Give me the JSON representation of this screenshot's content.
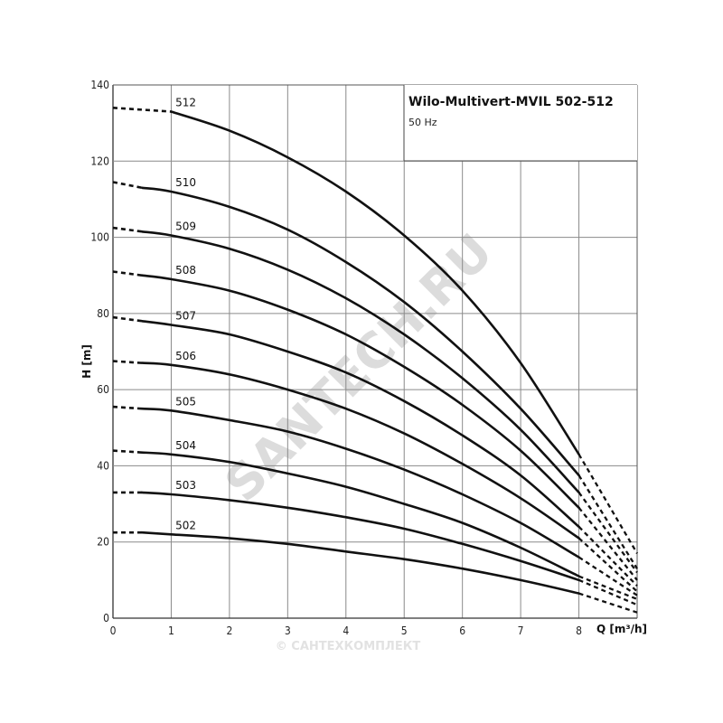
{
  "chart_data": {
    "type": "line",
    "title": "Wilo-Multivert-MVIL 502-512",
    "subtitle": "50 Hz",
    "xlabel": "Q [m³/h]",
    "ylabel": "H [m]",
    "xlim": [
      0,
      9
    ],
    "ylim": [
      0,
      140
    ],
    "x_ticks": [
      0,
      1,
      2,
      3,
      4,
      5,
      6,
      7,
      8
    ],
    "y_ticks": [
      0,
      20,
      40,
      60,
      80,
      100,
      120,
      140
    ],
    "grid": true,
    "series": [
      {
        "name": "502",
        "x": [
          0.5,
          1,
          2,
          3,
          4,
          5,
          6,
          7,
          8
        ],
        "y": [
          22.5,
          22,
          21,
          19.5,
          17.5,
          15.5,
          13,
          10,
          6.5
        ],
        "ext_left": [
          0,
          22.5
        ],
        "ext_right": [
          9,
          1.5
        ]
      },
      {
        "name": "503",
        "x": [
          0.5,
          1,
          2,
          3,
          4,
          5,
          6,
          7,
          8
        ],
        "y": [
          33,
          32.5,
          31,
          29,
          26.5,
          23.5,
          19.5,
          15,
          10
        ],
        "ext_left": [
          0,
          33
        ],
        "ext_right": [
          9,
          3.5
        ]
      },
      {
        "name": "504",
        "x": [
          0.5,
          1,
          2,
          3,
          4,
          5,
          6,
          7,
          8
        ],
        "y": [
          43.5,
          43,
          41,
          38,
          34.5,
          30,
          25,
          18.5,
          11
        ],
        "ext_left": [
          0,
          44
        ],
        "ext_right": [
          9,
          5
        ]
      },
      {
        "name": "505",
        "x": [
          0.5,
          1,
          2,
          3,
          4,
          5,
          6,
          7,
          8
        ],
        "y": [
          55,
          54.5,
          52,
          49,
          44.5,
          39,
          32.5,
          25,
          16
        ],
        "ext_left": [
          0,
          55.5
        ],
        "ext_right": [
          9,
          6
        ]
      },
      {
        "name": "506",
        "x": [
          0.5,
          1,
          2,
          3,
          4,
          5,
          6,
          7,
          8
        ],
        "y": [
          67,
          66.5,
          64,
          60,
          55,
          48.5,
          40.5,
          31.5,
          21
        ],
        "ext_left": [
          0,
          67.5
        ],
        "ext_right": [
          9,
          7
        ]
      },
      {
        "name": "507",
        "x": [
          0.5,
          1,
          2,
          3,
          4,
          5,
          6,
          7,
          8
        ],
        "y": [
          78,
          77,
          74.5,
          70,
          64.5,
          57,
          48,
          37.5,
          24
        ],
        "ext_left": [
          0,
          79
        ],
        "ext_right": [
          9,
          8.5
        ]
      },
      {
        "name": "508",
        "x": [
          0.5,
          1,
          2,
          3,
          4,
          5,
          6,
          7,
          8
        ],
        "y": [
          90,
          89,
          86,
          81,
          74.5,
          66,
          56,
          44,
          29
        ],
        "ext_left": [
          0,
          91
        ],
        "ext_right": [
          9,
          10
        ]
      },
      {
        "name": "509",
        "x": [
          0.5,
          1,
          2,
          3,
          4,
          5,
          6,
          7,
          8
        ],
        "y": [
          101.5,
          100.5,
          97,
          91.5,
          84,
          74.5,
          63,
          49.5,
          33
        ],
        "ext_left": [
          0,
          102.5
        ],
        "ext_right": [
          9,
          12
        ]
      },
      {
        "name": "510",
        "x": [
          0.5,
          1,
          2,
          3,
          4,
          5,
          6,
          7,
          8
        ],
        "y": [
          113,
          112,
          108,
          102,
          93.5,
          83,
          70,
          55,
          37.5
        ],
        "ext_left": [
          0,
          114.5
        ],
        "ext_right": [
          9,
          13
        ]
      },
      {
        "name": "512",
        "x": [
          1,
          2,
          3,
          4,
          5,
          6,
          7,
          8
        ],
        "y": [
          133,
          128,
          121,
          112,
          100.5,
          86,
          67,
          43
        ],
        "ext_left": [
          0,
          134
        ],
        "ext_right": [
          9,
          17
        ]
      }
    ]
  },
  "watermarks": {
    "main": "SANTECH.RU",
    "footer": "© САНТЕХКОМПЛЕКТ"
  }
}
